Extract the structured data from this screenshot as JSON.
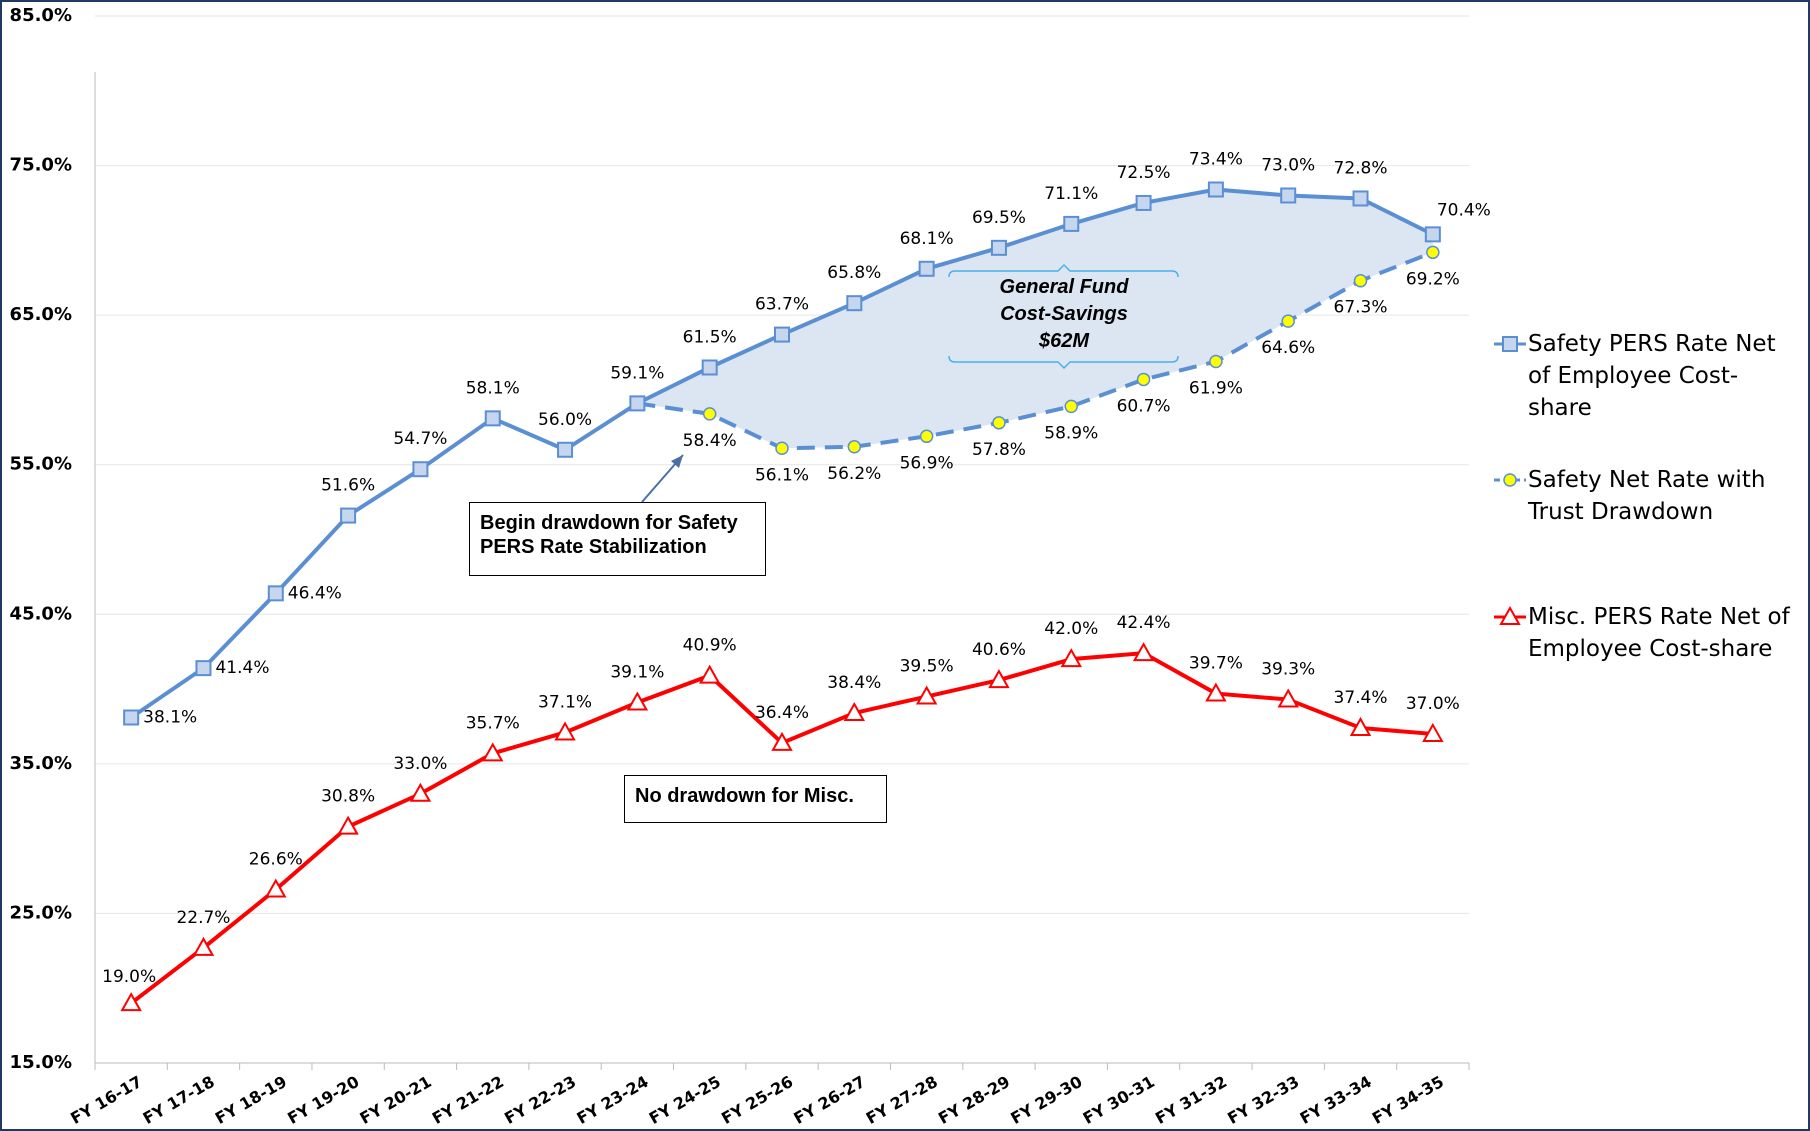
{
  "chart_data": {
    "type": "line",
    "categories": [
      "FY 16-17",
      "FY 17-18",
      "FY 18-19",
      "FY 19-20",
      "FY 20-21",
      "FY 21-22",
      "FY 22-23",
      "FY 23-24",
      "FY 24-25",
      "FY 25-26",
      "FY 26-27",
      "FY 27-28",
      "FY 28-29",
      "FY 29-30",
      "FY 30-31",
      "FY 31-32",
      "FY 32-33",
      "FY 33-34",
      "FY 34-35"
    ],
    "series": [
      {
        "name": "Safety PERS Rate Net of Employee Cost-share",
        "color": "#5b8fd4",
        "marker": "square",
        "values": [
          38.1,
          41.4,
          46.4,
          51.6,
          54.7,
          58.1,
          56.0,
          59.1,
          61.5,
          63.7,
          65.8,
          68.1,
          69.5,
          71.1,
          72.5,
          73.4,
          73.0,
          72.8,
          70.4
        ],
        "value_labels": [
          "38.1%",
          "41.4%",
          "46.4%",
          "51.6%",
          "54.7%",
          "58.1%",
          "56.0%",
          "59.1%",
          "61.5%",
          "63.7%",
          "65.8%",
          "68.1%",
          "69.5%",
          "71.1%",
          "72.5%",
          "73.4%",
          "73.0%",
          "72.8%",
          "70.4%"
        ]
      },
      {
        "name": "Safety Net Rate with Trust Drawdown",
        "color": "#5b8fd4",
        "marker": "circle",
        "dashed": true,
        "values": [
          null,
          null,
          null,
          null,
          null,
          null,
          null,
          59.1,
          58.4,
          56.1,
          56.2,
          56.9,
          57.8,
          58.9,
          60.7,
          61.9,
          64.6,
          67.3,
          69.2
        ],
        "value_labels": [
          null,
          null,
          null,
          null,
          null,
          null,
          null,
          null,
          "58.4%",
          "56.1%",
          "56.2%",
          "56.9%",
          "57.8%",
          "58.9%",
          "60.7%",
          "61.9%",
          "64.6%",
          "67.3%",
          "69.2%"
        ]
      },
      {
        "name": "Misc. PERS Rate Net of Employee Cost-share",
        "color": "#ff0000",
        "marker": "triangle",
        "values": [
          19.0,
          22.7,
          26.6,
          30.8,
          33.0,
          35.7,
          37.1,
          39.1,
          40.9,
          36.4,
          38.4,
          39.5,
          40.6,
          42.0,
          42.4,
          39.7,
          39.3,
          37.4,
          37.0
        ],
        "value_labels": [
          "19.0%",
          "22.7%",
          "26.6%",
          "30.8%",
          "33.0%",
          "35.7%",
          "37.1%",
          "39.1%",
          "40.9%",
          "36.4%",
          "38.4%",
          "39.5%",
          "40.6%",
          "42.0%",
          "42.4%",
          "39.7%",
          "39.3%",
          "37.4%",
          "37.0%"
        ]
      }
    ],
    "ylim": [
      15,
      85
    ],
    "yticks": [
      {
        "value": 15,
        "label": "15.0%"
      },
      {
        "value": 25,
        "label": "25.0%"
      },
      {
        "value": 35,
        "label": "35.0%"
      },
      {
        "value": 45,
        "label": "45.0%"
      },
      {
        "value": 55,
        "label": "55.0%"
      },
      {
        "value": 65,
        "label": "65.0%"
      },
      {
        "value": 75,
        "label": "75.0%"
      },
      {
        "value": 85,
        "label": "85.0%"
      }
    ],
    "grid": true,
    "legend": "right",
    "annotations": [
      "General Fund Cost-Savings $62M",
      "Begin drawdown for Safety PERS Rate Stabilization",
      "No drawdown for Misc."
    ]
  }
}
